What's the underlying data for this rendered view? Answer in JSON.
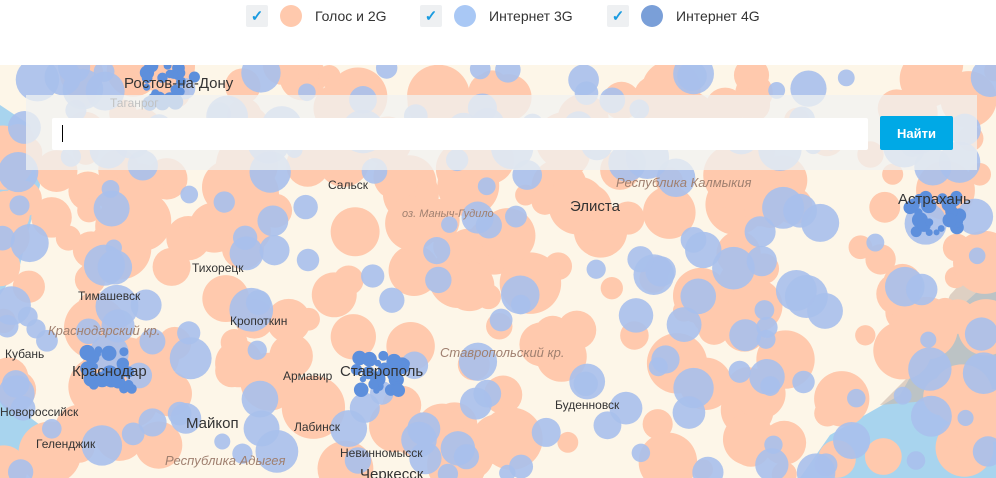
{
  "legend": [
    {
      "label": "Голос и 2G",
      "checked": true,
      "color": "#ffc9ad"
    },
    {
      "label": "Интернет 3G",
      "checked": true,
      "color": "#a9c8f5"
    },
    {
      "label": "Интернет 4G",
      "checked": true,
      "color": "#7a9fd8"
    }
  ],
  "search": {
    "value": "",
    "placeholder": "",
    "button": "Найти"
  },
  "map": {
    "colors": {
      "land": "#fdf6e8",
      "sea": "#a8d4ee",
      "voice": "#ffc9ad",
      "g3": "#a9c0ec",
      "g4": "#5d8fdc"
    },
    "cities": [
      {
        "name": "Ростов-на-Дону",
        "big": true
      },
      {
        "name": "Сальск"
      },
      {
        "name": "Элиста",
        "big": true
      },
      {
        "name": "Астрахань",
        "big": true
      },
      {
        "name": "Тихорецк"
      },
      {
        "name": "Тимашевск"
      },
      {
        "name": "Кропоткин"
      },
      {
        "name": "Краснодар",
        "big": true
      },
      {
        "name": "Армавир"
      },
      {
        "name": "Ставрополь",
        "big": true
      },
      {
        "name": "Буденновск"
      },
      {
        "name": "Майкоп",
        "big": true
      },
      {
        "name": "Лабинск"
      },
      {
        "name": "Невинномысск"
      },
      {
        "name": "Геленджик"
      },
      {
        "name": "Черкесск",
        "big": true
      },
      {
        "name": "Новороссийск"
      },
      {
        "name": "Кубань"
      },
      {
        "name": "Таганрог"
      }
    ],
    "regions": [
      "Республика Калмыкия",
      "Краснодарский кр.",
      "Ставропольский кр.",
      "Республика Адыгея",
      "оз. Маныч-Гудило"
    ]
  }
}
